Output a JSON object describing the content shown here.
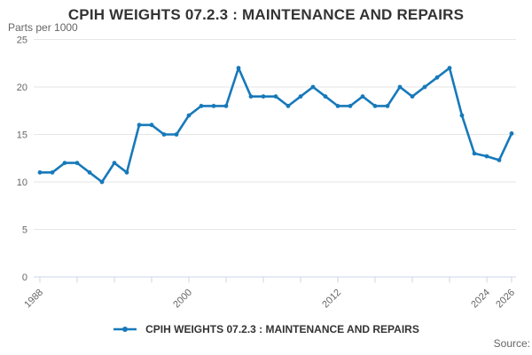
{
  "title": "CPIH WEIGHTS 07.2.3 : MAINTENANCE AND REPAIRS",
  "y_axis_unit": "Parts per 1000",
  "legend": {
    "label": "CPIH WEIGHTS 07.2.3 : MAINTENANCE AND REPAIRS"
  },
  "source_label": "Source:",
  "colors": {
    "line": "#1779ba",
    "axis": "#ccd6eb",
    "grid": "#e6e6e6",
    "muted_text": "#666666",
    "title_text": "#333333"
  },
  "chart_data": {
    "type": "line",
    "title": "CPIH WEIGHTS 07.2.3 : MAINTENANCE AND REPAIRS",
    "ylabel": "Parts per 1000",
    "xlabel": "",
    "ylim": [
      0,
      25
    ],
    "yticks": [
      0,
      5,
      10,
      15,
      20,
      25
    ],
    "xtick_minor_step_years": 3,
    "xtick_labels": [
      1988,
      2000,
      2012,
      2024,
      2026
    ],
    "grid": true,
    "legend_position": "bottom",
    "series_name": "CPIH WEIGHTS 07.2.3 : MAINTENANCE AND REPAIRS",
    "x": [
      1988,
      1989,
      1990,
      1991,
      1992,
      1993,
      1994,
      1995,
      1996,
      1997,
      1998,
      1999,
      2000,
      2001,
      2002,
      2003,
      2004,
      2005,
      2006,
      2007,
      2008,
      2009,
      2010,
      2011,
      2012,
      2013,
      2014,
      2015,
      2016,
      2017,
      2018,
      2019,
      2020,
      2021,
      2022,
      2023,
      2024,
      2025,
      2026
    ],
    "values": [
      11,
      11,
      12,
      12,
      11,
      10,
      12,
      11,
      16,
      16,
      15,
      15,
      17,
      18,
      18,
      18,
      22,
      19,
      19,
      19,
      18,
      19,
      20,
      19,
      18,
      18,
      19,
      18,
      18,
      20,
      19,
      20,
      21,
      22,
      17,
      13,
      12.7,
      12.3,
      15.1
    ]
  }
}
